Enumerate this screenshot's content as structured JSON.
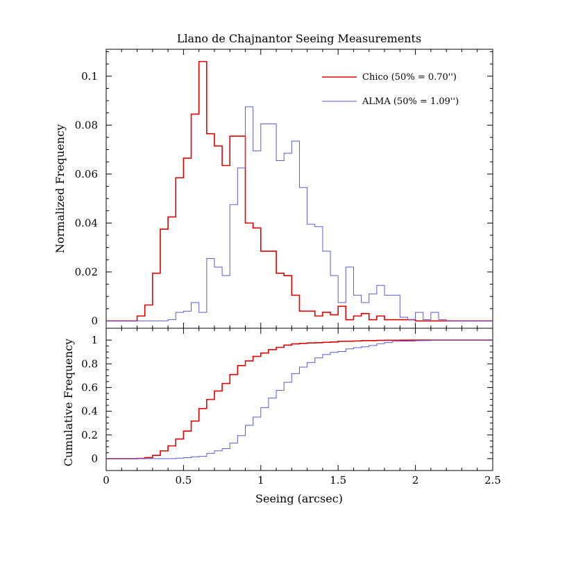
{
  "chart_data": {
    "type": "histogram",
    "title": "Llano de Chajnantor Seeing Measurements",
    "xlabel": "Seeing (arcsec)",
    "xlim": [
      0,
      2.5
    ],
    "xticks": [
      0,
      0.5,
      1,
      1.5,
      2,
      2.5
    ],
    "xtick_labels": [
      "0",
      "0.5",
      "1",
      "1.5",
      "2",
      "2.5"
    ],
    "bin_width": 0.05,
    "colors": {
      "Chico": "#e00000",
      "ALMA": "#5a5ad8"
    },
    "panels": {
      "histogram": {
        "ylabel": "Normalized Frequency",
        "ylim": [
          -0.003,
          0.111
        ],
        "yticks": [
          0,
          0.02,
          0.04,
          0.06,
          0.08,
          0.1
        ],
        "ytick_labels": [
          "0",
          "0.02",
          "0.04",
          "0.06",
          "0.08",
          "0.1"
        ]
      },
      "cumulative": {
        "ylabel": "Cumulative Frequency",
        "ylim": [
          -0.1,
          1.1
        ],
        "yticks": [
          0,
          0.2,
          0.4,
          0.6,
          0.8,
          1
        ],
        "ytick_labels": [
          "0",
          "0.2",
          "0.4",
          "0.6",
          "0.8",
          "1"
        ]
      }
    },
    "legend": {
      "placement": "top-right"
    },
    "series": [
      {
        "name": "Chico",
        "legend_label": "Chico (50% = 0.70'')",
        "bin_starts": [
          0.2,
          0.25,
          0.3,
          0.35,
          0.4,
          0.45,
          0.5,
          0.55,
          0.6,
          0.65,
          0.7,
          0.75,
          0.8,
          0.85,
          0.9,
          0.95,
          1.0,
          1.05,
          1.1,
          1.15,
          1.2,
          1.25,
          1.3,
          1.35,
          1.4,
          1.45,
          1.5,
          1.55,
          1.6,
          1.65,
          1.7,
          1.75,
          1.8,
          1.85,
          1.9,
          1.95
        ],
        "frequencies": [
          0.002,
          0.0065,
          0.0195,
          0.0375,
          0.0425,
          0.0585,
          0.0665,
          0.0845,
          0.106,
          0.0765,
          0.0715,
          0.0635,
          0.0755,
          0.0755,
          0.04,
          0.038,
          0.0285,
          0.0285,
          0.0195,
          0.0185,
          0.0105,
          0.004,
          0.004,
          0.002,
          0.0035,
          0.0025,
          0.006,
          0.0005,
          0.002,
          0.003,
          0.0005,
          0.002,
          0.0005,
          0.0005,
          0.0005,
          0.0005
        ]
      },
      {
        "name": "ALMA",
        "legend_label": "ALMA (50% = 1.09'')",
        "bin_starts": [
          0.4,
          0.45,
          0.5,
          0.55,
          0.6,
          0.65,
          0.7,
          0.75,
          0.8,
          0.85,
          0.9,
          0.95,
          1.0,
          1.05,
          1.1,
          1.15,
          1.2,
          1.25,
          1.3,
          1.35,
          1.4,
          1.45,
          1.5,
          1.55,
          1.6,
          1.65,
          1.7,
          1.75,
          1.8,
          1.85,
          1.9,
          1.95,
          2.0,
          2.05,
          2.1,
          2.15
        ],
        "frequencies": [
          0.0005,
          0.0035,
          0.004,
          0.0075,
          0.0035,
          0.0255,
          0.022,
          0.0185,
          0.0475,
          0.0625,
          0.0875,
          0.0695,
          0.0805,
          0.0805,
          0.0655,
          0.0685,
          0.0735,
          0.0545,
          0.0395,
          0.0385,
          0.0285,
          0.0185,
          0.0075,
          0.022,
          0.0105,
          0.0075,
          0.011,
          0.0145,
          0.0105,
          0.0105,
          0.0015,
          0.0005,
          0.0035,
          0.0005,
          0.0035,
          0.0005
        ]
      }
    ]
  }
}
